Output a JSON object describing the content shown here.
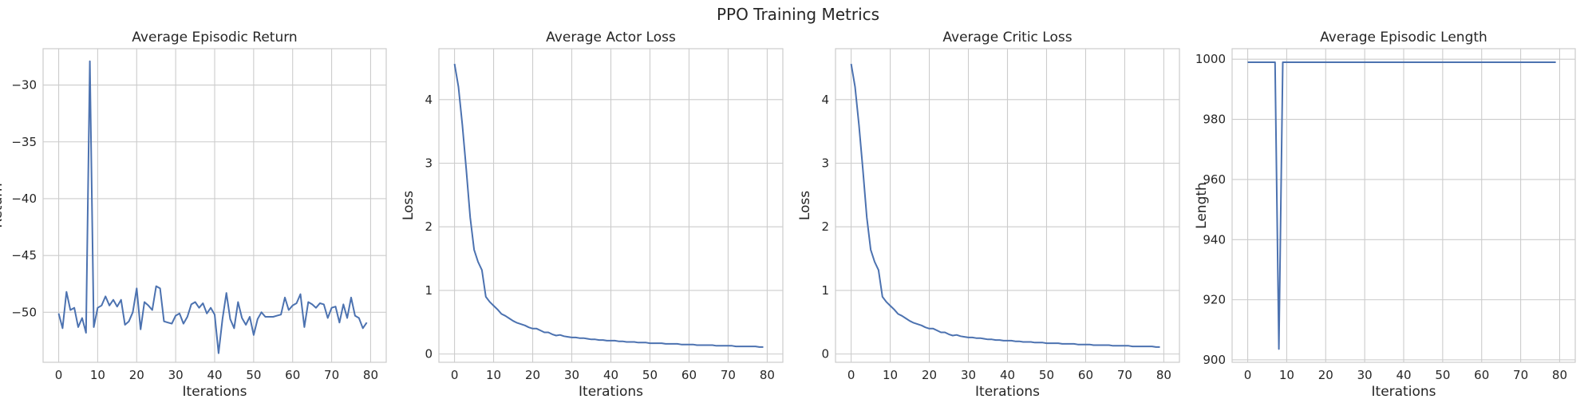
{
  "suptitle": "PPO Training Metrics",
  "colors": {
    "line": "#4c72b0",
    "grid": "#cccccc",
    "spine": "#cccccc",
    "text": "#262626"
  },
  "chart_data": [
    {
      "type": "line",
      "title": "Average Episodic Return",
      "xlabel": "Iterations",
      "ylabel": "Return",
      "xlim": [
        -4,
        84
      ],
      "ylim": [
        -54.4,
        -26.8
      ],
      "xticks": [
        0,
        10,
        20,
        30,
        40,
        50,
        60,
        70,
        80
      ],
      "yticks": [
        -30,
        -35,
        -40,
        -45,
        -50
      ],
      "grid": true,
      "series": [
        {
          "x": [
            0,
            1,
            2,
            3,
            4,
            5,
            6,
            7,
            8,
            9,
            10,
            11,
            12,
            13,
            14,
            15,
            16,
            17,
            18,
            19,
            20,
            21,
            22,
            23,
            24,
            25,
            26,
            27,
            28,
            29,
            30,
            31,
            32,
            33,
            34,
            35,
            36,
            37,
            38,
            39,
            40,
            41,
            42,
            43,
            44,
            45,
            46,
            47,
            48,
            49,
            50,
            51,
            52,
            53,
            54,
            55,
            56,
            57,
            58,
            59,
            60,
            61,
            62,
            63,
            64,
            65,
            66,
            67,
            68,
            69,
            70,
            71,
            72,
            73,
            74,
            75,
            76,
            77,
            78,
            79
          ],
          "values": [
            -50.1,
            -51.4,
            -48.2,
            -49.8,
            -49.6,
            -51.3,
            -50.5,
            -51.8,
            -27.9,
            -51.3,
            -49.6,
            -49.4,
            -48.6,
            -49.4,
            -48.9,
            -49.5,
            -48.9,
            -51.1,
            -50.8,
            -50.0,
            -47.9,
            -51.5,
            -49.1,
            -49.4,
            -49.8,
            -47.7,
            -47.9,
            -50.8,
            -50.9,
            -51.0,
            -50.3,
            -50.1,
            -51.0,
            -50.4,
            -49.3,
            -49.1,
            -49.6,
            -49.2,
            -50.1,
            -49.6,
            -50.2,
            -53.6,
            -50.6,
            -48.3,
            -50.6,
            -51.4,
            -49.1,
            -50.5,
            -51.1,
            -50.4,
            -52.0,
            -50.6,
            -50.0,
            -50.4,
            -50.4,
            -50.4,
            -50.3,
            -50.2,
            -48.7,
            -49.8,
            -49.4,
            -49.2,
            -48.4,
            -51.3,
            -49.1,
            -49.3,
            -49.6,
            -49.2,
            -49.3,
            -50.5,
            -49.6,
            -49.5,
            -50.9,
            -49.3,
            -50.5,
            -48.7,
            -50.3,
            -50.5,
            -51.4,
            -50.9
          ]
        }
      ]
    },
    {
      "type": "line",
      "title": "Average Actor Loss",
      "xlabel": "Iterations",
      "ylabel": "Loss",
      "xlim": [
        -4,
        84
      ],
      "ylim": [
        -0.13,
        4.8
      ],
      "xticks": [
        0,
        10,
        20,
        30,
        40,
        50,
        60,
        70,
        80
      ],
      "yticks": [
        0,
        1,
        2,
        3,
        4
      ],
      "grid": true,
      "series": [
        {
          "x": [
            0,
            1,
            2,
            3,
            4,
            5,
            6,
            7,
            8,
            9,
            10,
            11,
            12,
            13,
            14,
            15,
            16,
            17,
            18,
            19,
            20,
            21,
            22,
            23,
            24,
            25,
            26,
            27,
            28,
            29,
            30,
            31,
            32,
            33,
            34,
            35,
            36,
            37,
            38,
            39,
            40,
            41,
            42,
            43,
            44,
            45,
            46,
            47,
            48,
            49,
            50,
            51,
            52,
            53,
            54,
            55,
            56,
            57,
            58,
            59,
            60,
            61,
            62,
            63,
            64,
            65,
            66,
            67,
            68,
            69,
            70,
            71,
            72,
            73,
            74,
            75,
            76,
            77,
            78,
            79
          ],
          "values": [
            4.56,
            4.2,
            3.6,
            2.9,
            2.15,
            1.64,
            1.45,
            1.32,
            0.9,
            0.82,
            0.76,
            0.7,
            0.63,
            0.6,
            0.56,
            0.52,
            0.49,
            0.47,
            0.45,
            0.42,
            0.4,
            0.4,
            0.37,
            0.34,
            0.34,
            0.31,
            0.29,
            0.3,
            0.28,
            0.27,
            0.26,
            0.26,
            0.25,
            0.25,
            0.24,
            0.23,
            0.23,
            0.22,
            0.22,
            0.21,
            0.21,
            0.21,
            0.2,
            0.2,
            0.19,
            0.19,
            0.19,
            0.18,
            0.18,
            0.18,
            0.17,
            0.17,
            0.17,
            0.17,
            0.16,
            0.16,
            0.16,
            0.16,
            0.15,
            0.15,
            0.15,
            0.15,
            0.14,
            0.14,
            0.14,
            0.14,
            0.14,
            0.13,
            0.13,
            0.13,
            0.13,
            0.13,
            0.12,
            0.12,
            0.12,
            0.12,
            0.12,
            0.12,
            0.11,
            0.11
          ]
        }
      ]
    },
    {
      "type": "line",
      "title": "Average Critic Loss",
      "xlabel": "Iterations",
      "ylabel": "Loss",
      "xlim": [
        -4,
        84
      ],
      "ylim": [
        -0.13,
        4.8
      ],
      "xticks": [
        0,
        10,
        20,
        30,
        40,
        50,
        60,
        70,
        80
      ],
      "yticks": [
        0,
        1,
        2,
        3,
        4
      ],
      "grid": true,
      "series": [
        {
          "x": [
            0,
            1,
            2,
            3,
            4,
            5,
            6,
            7,
            8,
            9,
            10,
            11,
            12,
            13,
            14,
            15,
            16,
            17,
            18,
            19,
            20,
            21,
            22,
            23,
            24,
            25,
            26,
            27,
            28,
            29,
            30,
            31,
            32,
            33,
            34,
            35,
            36,
            37,
            38,
            39,
            40,
            41,
            42,
            43,
            44,
            45,
            46,
            47,
            48,
            49,
            50,
            51,
            52,
            53,
            54,
            55,
            56,
            57,
            58,
            59,
            60,
            61,
            62,
            63,
            64,
            65,
            66,
            67,
            68,
            69,
            70,
            71,
            72,
            73,
            74,
            75,
            76,
            77,
            78,
            79
          ],
          "values": [
            4.56,
            4.2,
            3.6,
            2.9,
            2.15,
            1.64,
            1.45,
            1.32,
            0.9,
            0.82,
            0.76,
            0.7,
            0.63,
            0.6,
            0.56,
            0.52,
            0.49,
            0.47,
            0.45,
            0.42,
            0.4,
            0.4,
            0.37,
            0.34,
            0.34,
            0.31,
            0.29,
            0.3,
            0.28,
            0.27,
            0.26,
            0.26,
            0.25,
            0.25,
            0.24,
            0.23,
            0.23,
            0.22,
            0.22,
            0.21,
            0.21,
            0.21,
            0.2,
            0.2,
            0.19,
            0.19,
            0.19,
            0.18,
            0.18,
            0.18,
            0.17,
            0.17,
            0.17,
            0.17,
            0.16,
            0.16,
            0.16,
            0.16,
            0.15,
            0.15,
            0.15,
            0.15,
            0.14,
            0.14,
            0.14,
            0.14,
            0.14,
            0.13,
            0.13,
            0.13,
            0.13,
            0.13,
            0.12,
            0.12,
            0.12,
            0.12,
            0.12,
            0.12,
            0.11,
            0.11
          ]
        }
      ]
    },
    {
      "type": "line",
      "title": "Average Episodic Length",
      "xlabel": "Iterations",
      "ylabel": "Length",
      "xlim": [
        -4,
        84
      ],
      "ylim": [
        899.2,
        1003.5
      ],
      "xticks": [
        0,
        10,
        20,
        30,
        40,
        50,
        60,
        70,
        80
      ],
      "yticks": [
        900,
        920,
        940,
        960,
        980,
        1000
      ],
      "grid": true,
      "series": [
        {
          "x": [
            0,
            1,
            2,
            3,
            4,
            5,
            6,
            7,
            8,
            9,
            10,
            11,
            12,
            13,
            14,
            15,
            16,
            17,
            18,
            19,
            20,
            21,
            22,
            23,
            24,
            25,
            26,
            27,
            28,
            29,
            30,
            31,
            32,
            33,
            34,
            35,
            36,
            37,
            38,
            39,
            40,
            41,
            42,
            43,
            44,
            45,
            46,
            47,
            48,
            49,
            50,
            51,
            52,
            53,
            54,
            55,
            56,
            57,
            58,
            59,
            60,
            61,
            62,
            63,
            64,
            65,
            66,
            67,
            68,
            69,
            70,
            71,
            72,
            73,
            74,
            75,
            76,
            77,
            78,
            79
          ],
          "values": [
            999,
            999,
            999,
            999,
            999,
            999,
            999,
            999,
            903.6,
            999,
            999,
            999,
            999,
            999,
            999,
            999,
            999,
            999,
            999,
            999,
            999,
            999,
            999,
            999,
            999,
            999,
            999,
            999,
            999,
            999,
            999,
            999,
            999,
            999,
            999,
            999,
            999,
            999,
            999,
            999,
            999,
            999,
            999,
            999,
            999,
            999,
            999,
            999,
            999,
            999,
            999,
            999,
            999,
            999,
            999,
            999,
            999,
            999,
            999,
            999,
            999,
            999,
            999,
            999,
            999,
            999,
            999,
            999,
            999,
            999,
            999,
            999,
            999,
            999,
            999,
            999,
            999,
            999,
            999,
            999
          ]
        }
      ]
    }
  ]
}
